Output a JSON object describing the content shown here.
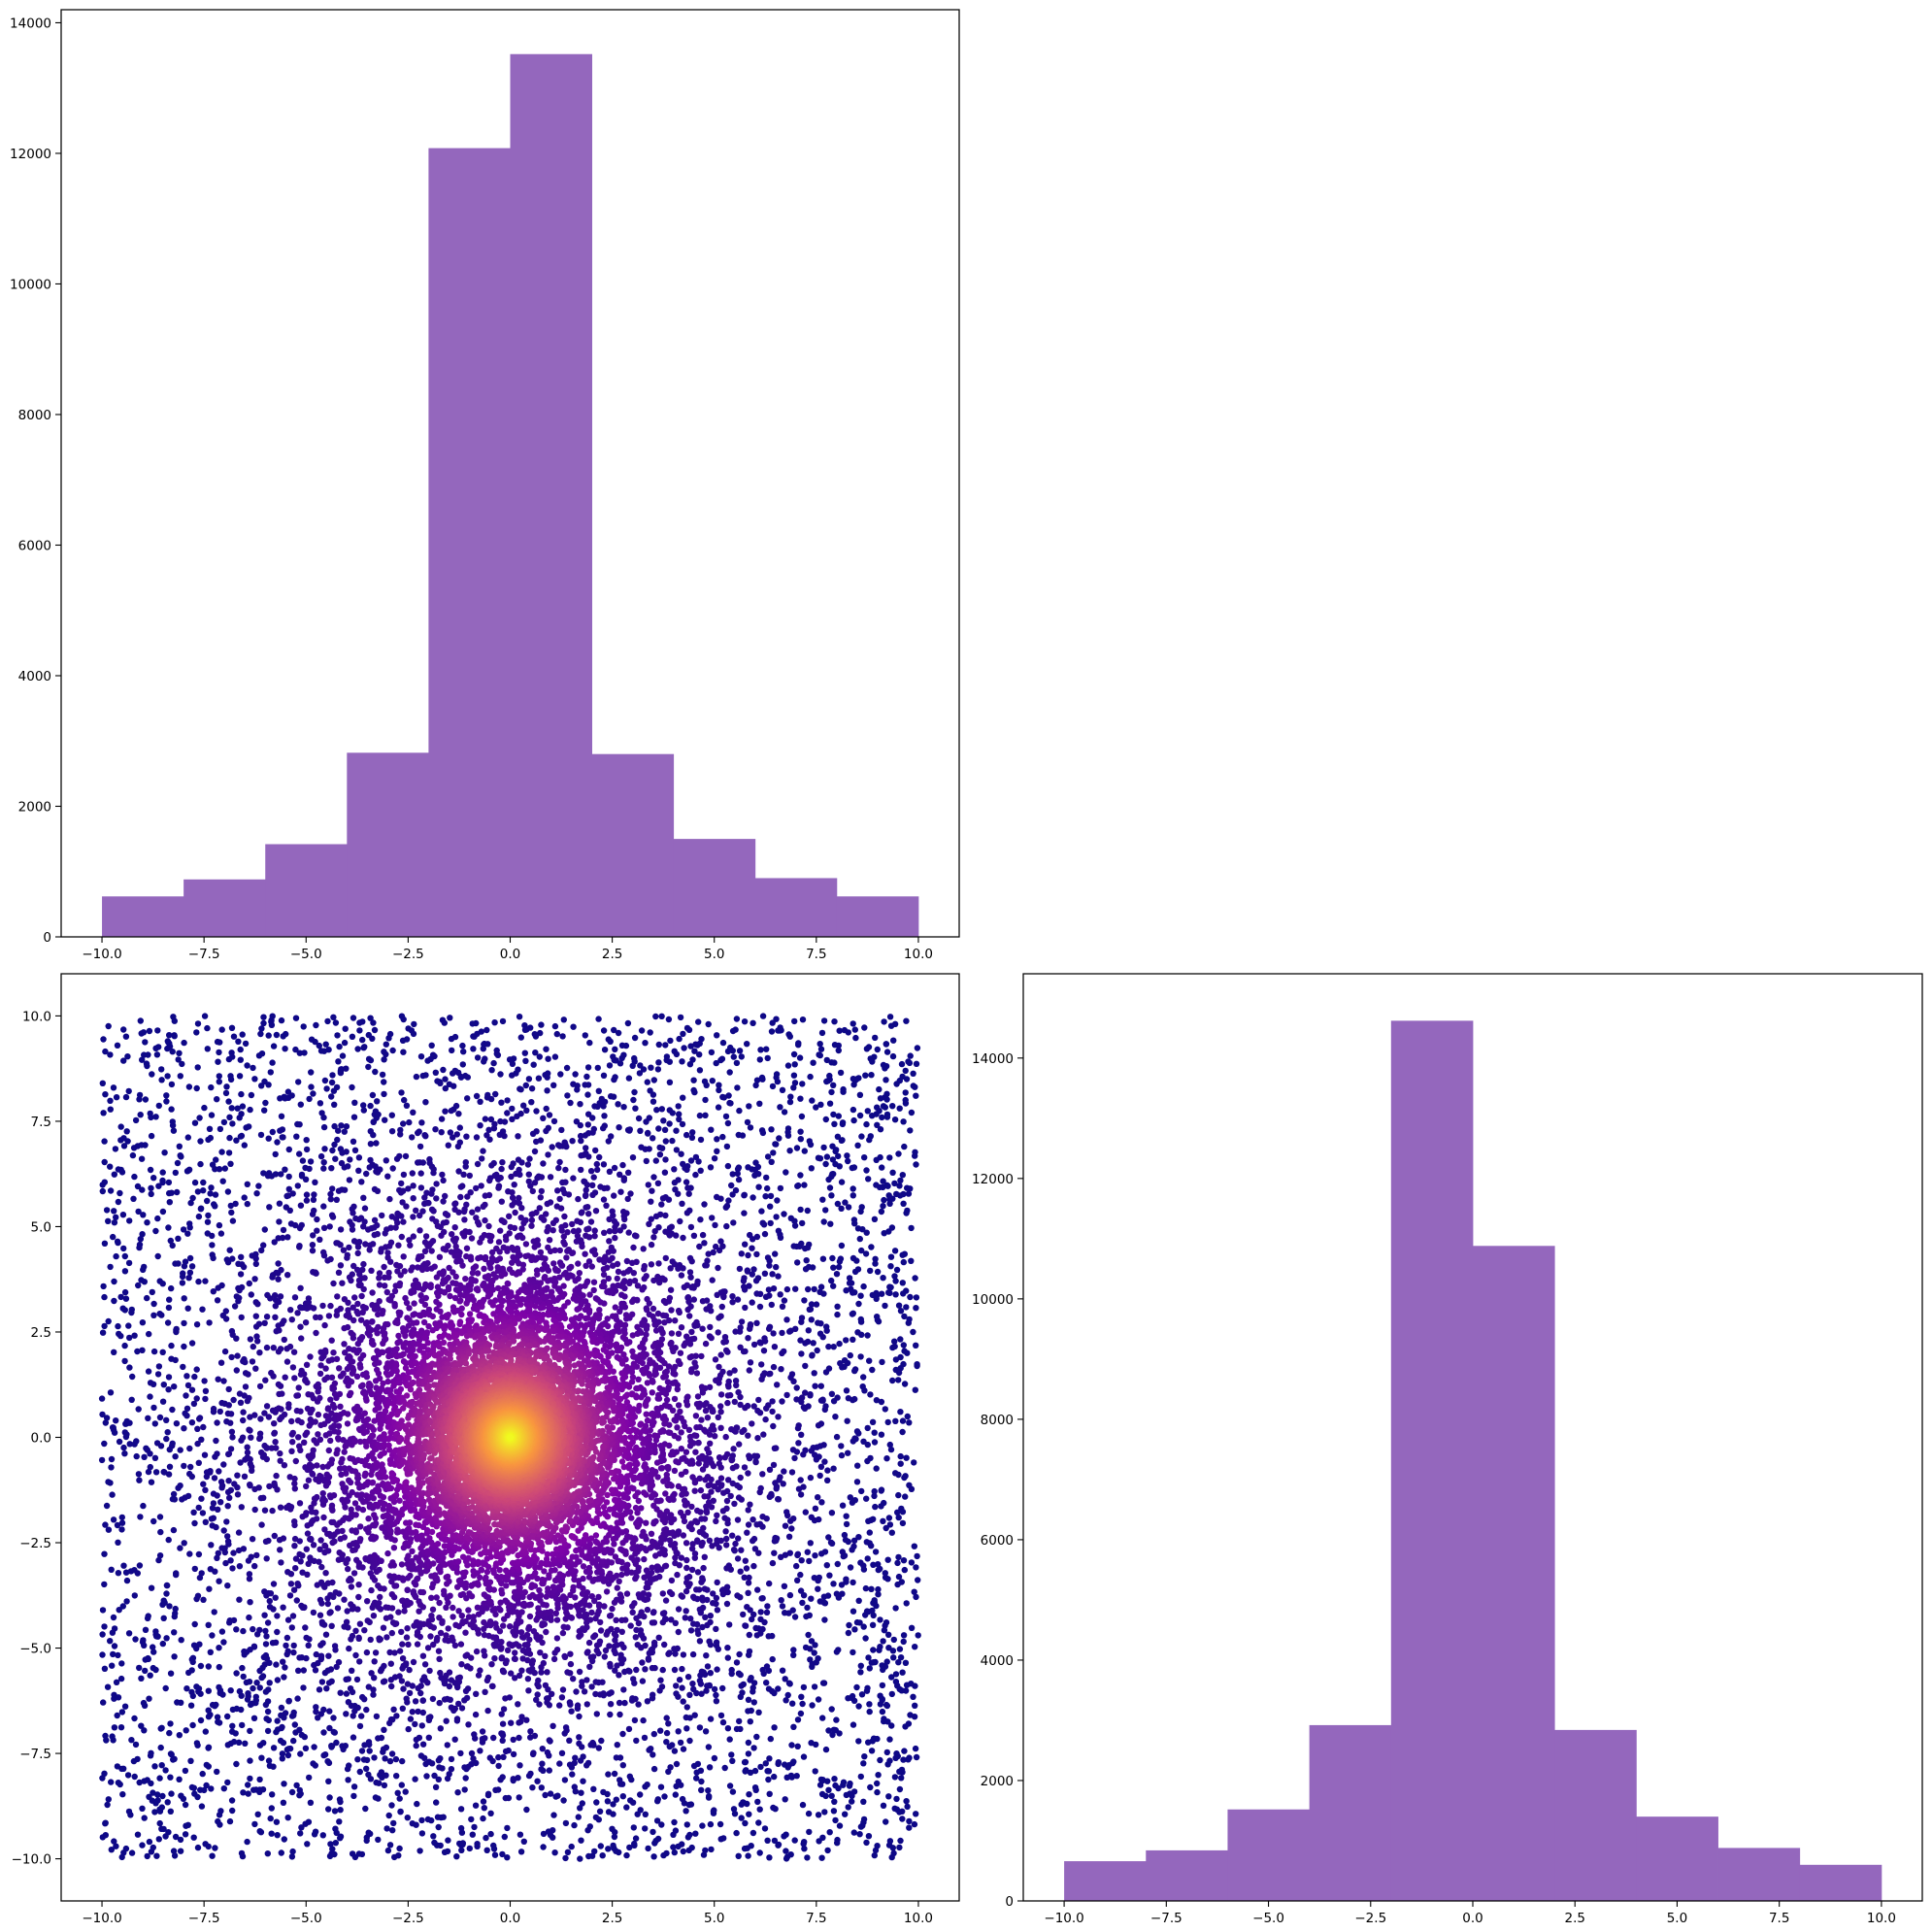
{
  "figure": {
    "bar_color": "#9467bd",
    "point_colormap": "plasma"
  },
  "chart_data": [
    {
      "id": "hist-top",
      "type": "bar",
      "subtype": "histogram",
      "bin_edges": [
        -10,
        -8,
        -6,
        -4,
        -2,
        0,
        2,
        4,
        6,
        8,
        10
      ],
      "values": [
        620,
        880,
        1420,
        2820,
        12080,
        13520,
        2800,
        1500,
        900,
        620
      ],
      "xlim": [
        -11,
        11
      ],
      "ylim": [
        0,
        14200
      ],
      "xticks": [
        -10,
        -7.5,
        -5,
        -2.5,
        0,
        2.5,
        5,
        7.5,
        10
      ],
      "xtick_labels": [
        "−10.0",
        "−7.5",
        "−5.0",
        "−2.5",
        "0.0",
        "2.5",
        "5.0",
        "7.5",
        "10.0"
      ],
      "yticks": [
        0,
        2000,
        4000,
        6000,
        8000,
        10000,
        12000,
        14000
      ],
      "ytick_labels": [
        "0",
        "2000",
        "4000",
        "6000",
        "8000",
        "10000",
        "12000",
        "14000"
      ],
      "grid": false,
      "legend": "none"
    },
    {
      "id": "scatter-bottom-left",
      "type": "scatter",
      "x_range": [
        -10,
        10
      ],
      "y_range": [
        -10,
        10
      ],
      "color_by": "density toward center",
      "colormap": "plasma",
      "xlim": [
        -11,
        11
      ],
      "ylim": [
        -11,
        11
      ],
      "xticks": [
        -10,
        -7.5,
        -5,
        -2.5,
        0,
        2.5,
        5,
        7.5,
        10
      ],
      "xtick_labels": [
        "−10.0",
        "−7.5",
        "−5.0",
        "−2.5",
        "0.0",
        "2.5",
        "5.0",
        "7.5",
        "10.0"
      ],
      "yticks": [
        -10,
        -7.5,
        -5,
        -2.5,
        0,
        2.5,
        5,
        7.5,
        10
      ],
      "ytick_labels": [
        "−10.0",
        "−7.5",
        "−5.0",
        "−2.5",
        "0.0",
        "2.5",
        "5.0",
        "7.5",
        "10.0"
      ],
      "grid": false,
      "legend": "none"
    },
    {
      "id": "hist-bottom-right",
      "type": "bar",
      "subtype": "histogram",
      "bin_edges": [
        -10,
        -8,
        -6,
        -4,
        -2,
        0,
        2,
        4,
        6,
        8,
        10
      ],
      "values": [
        660,
        840,
        1520,
        2920,
        14620,
        10880,
        2840,
        1400,
        880,
        600
      ],
      "xlim": [
        -11,
        11
      ],
      "ylim": [
        0,
        15400
      ],
      "xticks": [
        -10,
        -7.5,
        -5,
        -2.5,
        0,
        2.5,
        5,
        7.5,
        10
      ],
      "xtick_labels": [
        "−10.0",
        "−7.5",
        "−5.0",
        "−2.5",
        "0.0",
        "2.5",
        "5.0",
        "7.5",
        "10.0"
      ],
      "yticks": [
        0,
        2000,
        4000,
        6000,
        8000,
        10000,
        12000,
        14000
      ],
      "ytick_labels": [
        "0",
        "2000",
        "4000",
        "6000",
        "8000",
        "10000",
        "12000",
        "14000"
      ],
      "grid": false,
      "legend": "none"
    }
  ]
}
